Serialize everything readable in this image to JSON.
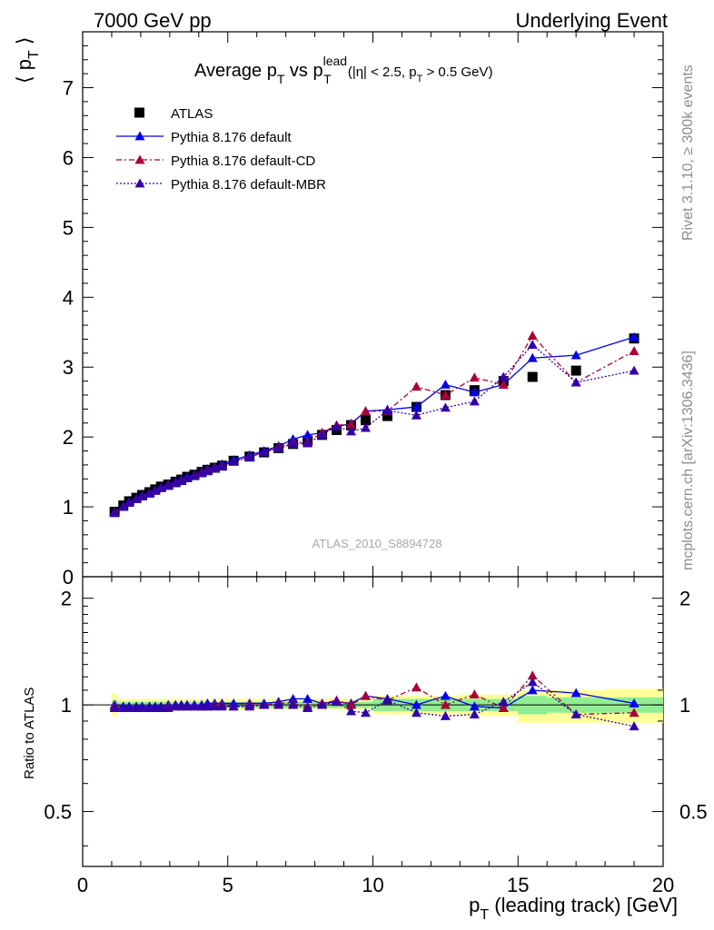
{
  "header": {
    "left": "7000 GeV pp",
    "right": "Underlying Event",
    "analysis": "ATLAS_2010_S8894728",
    "side_rivet": "Rivet 3.1.10, ≥ 300k events",
    "side_mcplots": "mcplots.cern.ch [arXiv:1306.3436]"
  },
  "title": {
    "part1": "Average p",
    "sub1": "T",
    "part2": " vs p",
    "sup2": "lead",
    "sub2": "T",
    "cut1": " (|η| < 2.5, p",
    "cut_sub": "T",
    "cut2": " > 0.5 GeV)"
  },
  "axes": {
    "ylabel_main": "⟨ p",
    "ylabel_main_sub": "T",
    "ylabel_main_end": " ⟩",
    "ylabel_ratio": "Ratio to ATLAS",
    "xlabel": "p",
    "xlabel_sub": "T",
    "xlabel_rest": " (leading track) [GeV]"
  },
  "legend": [
    {
      "label": "ATLAS",
      "color": "#000000",
      "marker": "square",
      "line": "none"
    },
    {
      "label": "Pythia 8.176 default",
      "color": "#0000ee",
      "marker": "triangle",
      "line": "solid"
    },
    {
      "label": "Pythia 8.176 default-CD",
      "color": "#aa0033",
      "marker": "triangle",
      "line": "dashdot"
    },
    {
      "label": "Pythia 8.176 default-MBR",
      "color": "#3300aa",
      "marker": "triangle",
      "line": "dotted"
    }
  ],
  "chart_data": [
    {
      "type": "scatter",
      "panel": "main",
      "xlim": [
        0,
        20
      ],
      "ylim": [
        0,
        7.8
      ],
      "yticks": [
        0,
        1,
        2,
        3,
        4,
        5,
        6,
        7
      ],
      "xticks": [
        0,
        5,
        10,
        15,
        20
      ],
      "x": [
        1.1,
        1.4,
        1.6,
        1.85,
        2.05,
        2.3,
        2.5,
        2.7,
        2.95,
        3.2,
        3.4,
        3.6,
        3.85,
        4.1,
        4.3,
        4.55,
        4.8,
        5.2,
        5.75,
        6.25,
        6.75,
        7.25,
        7.75,
        8.25,
        8.75,
        9.25,
        9.75,
        10.5,
        11.5,
        12.5,
        13.5,
        14.5,
        15.5,
        17.0,
        19.0
      ],
      "series": [
        {
          "name": "ATLAS",
          "values": [
            0.93,
            1.02,
            1.08,
            1.13,
            1.17,
            1.21,
            1.25,
            1.29,
            1.32,
            1.36,
            1.39,
            1.43,
            1.46,
            1.5,
            1.53,
            1.56,
            1.59,
            1.66,
            1.72,
            1.78,
            1.84,
            1.9,
            1.95,
            2.03,
            2.1,
            2.17,
            2.24,
            2.3,
            2.43,
            2.6,
            2.67,
            2.8,
            2.86,
            2.95,
            3.41
          ]
        },
        {
          "name": "Pythia 8.176 default",
          "values": [
            0.93,
            1.01,
            1.07,
            1.12,
            1.16,
            1.2,
            1.24,
            1.28,
            1.32,
            1.36,
            1.39,
            1.43,
            1.46,
            1.5,
            1.54,
            1.57,
            1.61,
            1.67,
            1.74,
            1.8,
            1.87,
            1.97,
            2.03,
            2.06,
            2.15,
            2.19,
            2.37,
            2.39,
            2.43,
            2.75,
            2.64,
            2.75,
            3.13,
            3.17,
            3.43
          ]
        },
        {
          "name": "Pythia 8.176 default-CD",
          "values": [
            0.92,
            1.0,
            1.06,
            1.11,
            1.15,
            1.19,
            1.23,
            1.27,
            1.31,
            1.34,
            1.38,
            1.41,
            1.45,
            1.49,
            1.52,
            1.56,
            1.59,
            1.65,
            1.72,
            1.78,
            1.86,
            1.92,
            1.93,
            2.06,
            2.17,
            2.18,
            2.37,
            2.37,
            2.72,
            2.6,
            2.85,
            2.75,
            3.45,
            2.78,
            3.23
          ]
        },
        {
          "name": "Pythia 8.176 default-MBR",
          "values": [
            0.91,
            1.0,
            1.06,
            1.11,
            1.15,
            1.19,
            1.23,
            1.27,
            1.3,
            1.34,
            1.37,
            1.41,
            1.44,
            1.48,
            1.51,
            1.55,
            1.58,
            1.65,
            1.71,
            1.78,
            1.84,
            1.9,
            1.91,
            2.03,
            2.15,
            2.08,
            2.13,
            2.38,
            2.31,
            2.42,
            2.51,
            2.86,
            3.32,
            2.78,
            2.95
          ]
        }
      ]
    },
    {
      "type": "scatter",
      "panel": "ratio",
      "xlim": [
        0,
        20
      ],
      "ylim": [
        0.35,
        2.3
      ],
      "ytick_labels": [
        "0.5",
        "1",
        "2"
      ],
      "yticks": [
        0.5,
        1,
        2
      ],
      "xticks": [
        0,
        5,
        10,
        15,
        20
      ],
      "x": [
        1.1,
        1.4,
        1.6,
        1.85,
        2.05,
        2.3,
        2.5,
        2.7,
        2.95,
        3.2,
        3.4,
        3.6,
        3.85,
        4.1,
        4.3,
        4.55,
        4.8,
        5.2,
        5.75,
        6.25,
        6.75,
        7.25,
        7.75,
        8.25,
        8.75,
        9.25,
        9.75,
        10.5,
        11.5,
        12.5,
        13.5,
        14.5,
        15.5,
        17.0,
        19.0
      ],
      "series": [
        {
          "name": "Pythia 8.176 default",
          "values": [
            1.0,
            0.99,
            0.99,
            0.99,
            0.99,
            0.99,
            0.99,
            0.99,
            1.0,
            1.0,
            1.0,
            1.0,
            1.0,
            1.0,
            1.01,
            1.01,
            1.01,
            1.01,
            1.01,
            1.01,
            1.02,
            1.04,
            1.04,
            1.01,
            1.02,
            1.01,
            1.06,
            1.04,
            1.0,
            1.06,
            0.99,
            0.98,
            1.1,
            1.08,
            1.01
          ]
        },
        {
          "name": "Pythia 8.176 default-CD",
          "values": [
            0.99,
            0.98,
            0.98,
            0.98,
            0.98,
            0.98,
            0.98,
            0.98,
            0.99,
            0.99,
            0.99,
            0.99,
            0.99,
            0.99,
            0.99,
            1.0,
            1.0,
            0.99,
            1.0,
            1.0,
            1.01,
            1.01,
            0.99,
            1.01,
            1.03,
            1.0,
            1.06,
            1.03,
            1.12,
            1.0,
            1.07,
            0.98,
            1.21,
            0.94,
            0.95
          ]
        },
        {
          "name": "Pythia 8.176 default-MBR",
          "values": [
            0.98,
            0.98,
            0.98,
            0.98,
            0.98,
            0.98,
            0.98,
            0.98,
            0.98,
            0.99,
            0.99,
            0.99,
            0.99,
            0.99,
            0.99,
            0.99,
            0.99,
            0.99,
            0.99,
            1.0,
            1.0,
            1.0,
            0.98,
            1.0,
            1.02,
            0.96,
            0.95,
            1.03,
            0.95,
            0.93,
            0.94,
            1.02,
            1.16,
            0.94,
            0.87
          ]
        }
      ],
      "band_green": [
        {
          "x": [
            1.0,
            1.2
          ],
          "lo": 0.97,
          "hi": 1.03
        },
        {
          "x": [
            1.2,
            10.0
          ],
          "lo": 0.98,
          "hi": 1.02
        },
        {
          "x": [
            10.0,
            13.0
          ],
          "lo": 0.96,
          "hi": 1.04
        },
        {
          "x": [
            13.0,
            15.0
          ],
          "lo": 0.96,
          "hi": 1.04
        },
        {
          "x": [
            15.0,
            16.0
          ],
          "lo": 0.94,
          "hi": 1.06
        },
        {
          "x": [
            16.0,
            18.0
          ],
          "lo": 0.95,
          "hi": 1.05
        },
        {
          "x": [
            18.0,
            20.0
          ],
          "lo": 0.95,
          "hi": 1.05
        }
      ],
      "band_yellow": [
        {
          "x": [
            1.0,
            1.2
          ],
          "lo": 0.93,
          "hi": 1.08
        },
        {
          "x": [
            1.2,
            5.0
          ],
          "lo": 0.97,
          "hi": 1.04
        },
        {
          "x": [
            5.0,
            10.0
          ],
          "lo": 0.97,
          "hi": 1.04
        },
        {
          "x": [
            10.0,
            13.0
          ],
          "lo": 0.94,
          "hi": 1.06
        },
        {
          "x": [
            13.0,
            15.0
          ],
          "lo": 0.93,
          "hi": 1.07
        },
        {
          "x": [
            15.0,
            16.0
          ],
          "lo": 0.89,
          "hi": 1.1
        },
        {
          "x": [
            16.0,
            18.0
          ],
          "lo": 0.89,
          "hi": 1.1
        },
        {
          "x": [
            18.0,
            20.0
          ],
          "lo": 0.89,
          "hi": 1.11
        }
      ]
    }
  ]
}
